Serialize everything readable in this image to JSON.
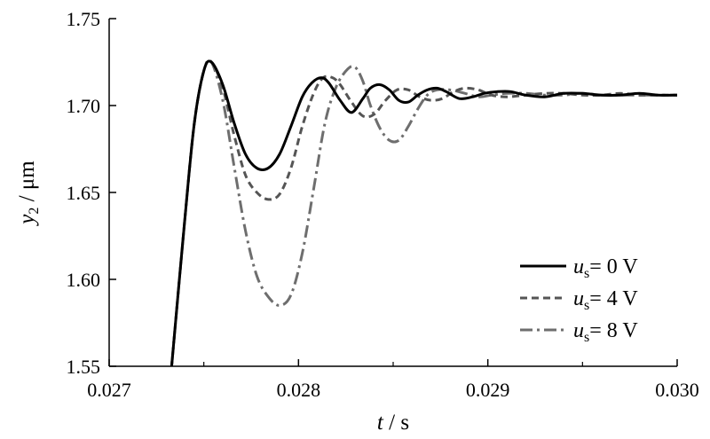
{
  "chart_data": {
    "type": "line",
    "xlabel": {
      "var": "t",
      "unit": "s"
    },
    "ylabel": {
      "var": "y",
      "sub": "2",
      "unit": "μm"
    },
    "xlim": [
      0.027,
      0.03
    ],
    "ylim": [
      1.55,
      1.75
    ],
    "xticks": [
      0.027,
      0.028,
      0.029,
      0.03
    ],
    "xtick_labels": [
      "0.027",
      "0.028",
      "0.029",
      "0.030"
    ],
    "yticks": [
      1.55,
      1.6,
      1.65,
      1.7,
      1.75
    ],
    "ytick_labels": [
      "1.55",
      "1.60",
      "1.65",
      "1.70",
      "1.75"
    ],
    "grid": false,
    "legend_position": "bottom-right",
    "series": [
      {
        "name": "u_s = 0 V",
        "legend": {
          "var": "u",
          "sub": "s",
          "text": "= 0 V"
        },
        "color": "#000000",
        "dash": "solid",
        "x": [
          0.02733,
          0.0274,
          0.02745,
          0.0275,
          0.02754,
          0.0276,
          0.02766,
          0.02772,
          0.02778,
          0.02784,
          0.0279,
          0.02796,
          0.02802,
          0.02807,
          0.02812,
          0.02816,
          0.02822,
          0.02828,
          0.02834,
          0.02838,
          0.02843,
          0.02848,
          0.02853,
          0.02858,
          0.02863,
          0.02868,
          0.02873,
          0.02878,
          0.02885,
          0.02892,
          0.02898,
          0.02905,
          0.02912,
          0.0292,
          0.0293,
          0.0294,
          0.0295,
          0.0296,
          0.0297,
          0.0298,
          0.0299,
          0.03
        ],
        "y": [
          1.55,
          1.635,
          1.69,
          1.72,
          1.725,
          1.712,
          1.69,
          1.672,
          1.664,
          1.664,
          1.672,
          1.688,
          1.705,
          1.713,
          1.716,
          1.713,
          1.703,
          1.696,
          1.704,
          1.71,
          1.712,
          1.709,
          1.703,
          1.702,
          1.706,
          1.709,
          1.71,
          1.708,
          1.704,
          1.705,
          1.707,
          1.708,
          1.708,
          1.706,
          1.705,
          1.707,
          1.707,
          1.706,
          1.706,
          1.707,
          1.706,
          1.706
        ]
      },
      {
        "name": "u_s = 4 V",
        "legend": {
          "var": "u",
          "sub": "s",
          "text": "= 4 V"
        },
        "color": "#555555",
        "dash": "dashed",
        "x": [
          0.02733,
          0.0274,
          0.02745,
          0.0275,
          0.02754,
          0.0276,
          0.02766,
          0.02772,
          0.02778,
          0.02784,
          0.0279,
          0.02796,
          0.02802,
          0.02808,
          0.02813,
          0.02818,
          0.02822,
          0.02828,
          0.02834,
          0.0284,
          0.02846,
          0.02852,
          0.02858,
          0.02864,
          0.0287,
          0.02876,
          0.02882,
          0.02888,
          0.02895,
          0.02902,
          0.0291,
          0.0292,
          0.0293,
          0.0294,
          0.0295,
          0.0296,
          0.0297,
          0.0298,
          0.0299,
          0.03
        ],
        "y": [
          1.55,
          1.635,
          1.69,
          1.72,
          1.725,
          1.71,
          1.683,
          1.66,
          1.65,
          1.646,
          1.649,
          1.664,
          1.688,
          1.707,
          1.716,
          1.716,
          1.712,
          1.702,
          1.694,
          1.695,
          1.703,
          1.709,
          1.709,
          1.705,
          1.703,
          1.704,
          1.708,
          1.71,
          1.709,
          1.706,
          1.705,
          1.706,
          1.707,
          1.707,
          1.706,
          1.706,
          1.707,
          1.706,
          1.706,
          1.706
        ]
      },
      {
        "name": "u_s = 8 V",
        "legend": {
          "var": "u",
          "sub": "s",
          "text": "= 8 V"
        },
        "color": "#6e6e6e",
        "dash": "dashdot",
        "x": [
          0.02733,
          0.0274,
          0.02745,
          0.0275,
          0.02754,
          0.0276,
          0.02766,
          0.02772,
          0.02778,
          0.02784,
          0.0279,
          0.02796,
          0.02802,
          0.02808,
          0.02814,
          0.0282,
          0.02826,
          0.0283,
          0.02834,
          0.02838,
          0.02843,
          0.02848,
          0.02853,
          0.02858,
          0.02863,
          0.02868,
          0.02873,
          0.0288,
          0.02888,
          0.02895,
          0.02902,
          0.0291,
          0.0292,
          0.0293,
          0.0294,
          0.0295,
          0.0296,
          0.0297,
          0.0298,
          0.0299,
          0.03
        ],
        "y": [
          1.55,
          1.635,
          1.69,
          1.72,
          1.725,
          1.703,
          1.665,
          1.628,
          1.602,
          1.59,
          1.585,
          1.591,
          1.615,
          1.652,
          1.69,
          1.711,
          1.721,
          1.722,
          1.714,
          1.7,
          1.687,
          1.68,
          1.68,
          1.688,
          1.698,
          1.706,
          1.709,
          1.709,
          1.707,
          1.705,
          1.706,
          1.707,
          1.707,
          1.706,
          1.706,
          1.707,
          1.706,
          1.706,
          1.706,
          1.706,
          1.706
        ]
      }
    ]
  }
}
